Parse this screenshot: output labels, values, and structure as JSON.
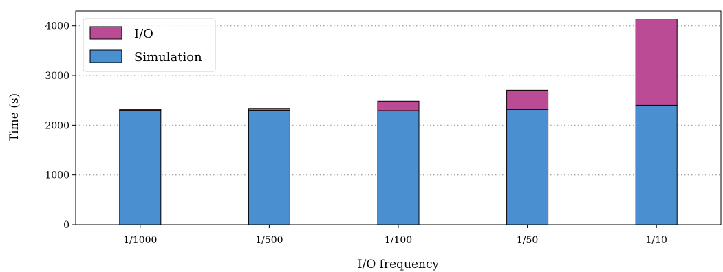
{
  "chart_data": {
    "type": "bar",
    "stacked": true,
    "categories": [
      "1/1000",
      "1/500",
      "1/100",
      "1/50",
      "1/10"
    ],
    "series": [
      {
        "name": "Simulation",
        "values": [
          2300,
          2300,
          2295,
          2320,
          2400
        ],
        "color": "#4a8fcf"
      },
      {
        "name": "I/O",
        "values": [
          20,
          40,
          190,
          385,
          1740
        ],
        "color": "#bc4b96"
      }
    ],
    "title": "",
    "xlabel": "I/O frequency",
    "ylabel": "Time (s)",
    "ylim": [
      0,
      4300
    ],
    "yticks": [
      0,
      1000,
      2000,
      3000,
      4000
    ],
    "grid": "y-dotted",
    "legend_position": "top-left",
    "legend_order": [
      "I/O",
      "Simulation"
    ]
  }
}
